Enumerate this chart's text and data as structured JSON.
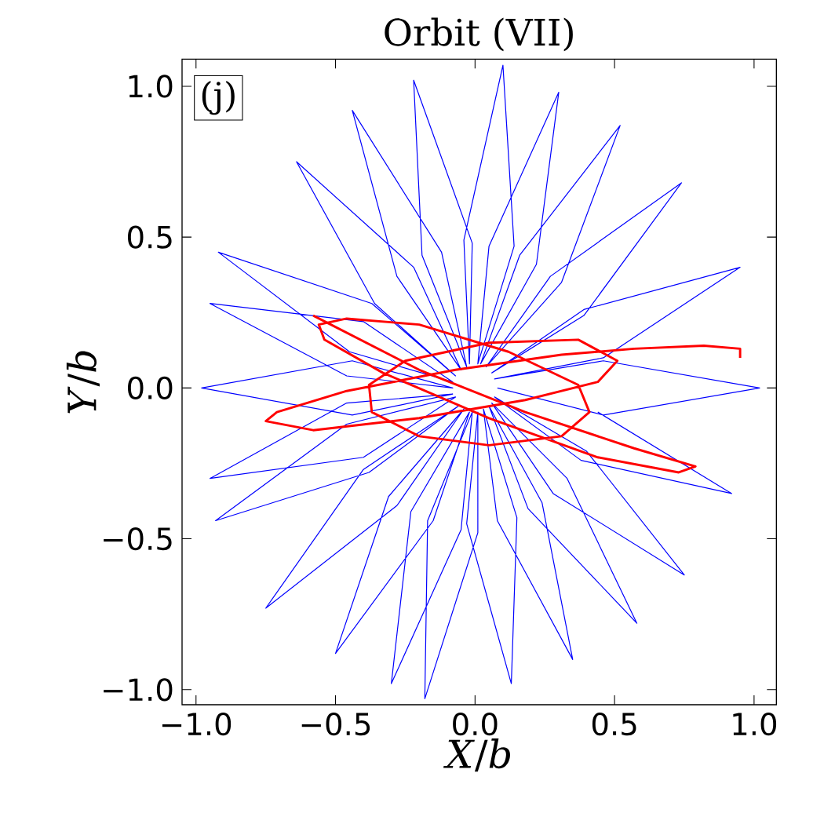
{
  "chart_data": {
    "type": "line",
    "title": "Orbit (VII)",
    "xlabel": "*X*/*b*",
    "ylabel": "*Y*/*b*",
    "annotations": [
      "(j)"
    ],
    "xlim": [
      -1.05,
      1.08
    ],
    "ylim": [
      -1.05,
      1.09
    ],
    "xticks": [
      {
        "value": -1.0,
        "label": "−1.0"
      },
      {
        "value": -0.5,
        "label": "−0.5"
      },
      {
        "value": 0.0,
        "label": "0.0"
      },
      {
        "value": 0.5,
        "label": "0.5"
      },
      {
        "value": 1.0,
        "label": "1.0"
      }
    ],
    "yticks": [
      {
        "value": -1.0,
        "label": "−1.0"
      },
      {
        "value": -0.5,
        "label": "−0.5"
      },
      {
        "value": 0.0,
        "label": "0.0"
      },
      {
        "value": 0.5,
        "label": "0.5"
      },
      {
        "value": 1.0,
        "label": "1.0"
      }
    ],
    "grid": false,
    "series": [
      {
        "color": "#0000ff",
        "x": [
          0.08,
          0.46,
          1.02,
          0.46,
          0.07,
          0.46,
          0.95,
          0.39,
          0.06,
          0.39,
          0.74,
          0.27,
          0.04,
          0.31,
          0.52,
          0.16,
          0.02,
          0.22,
          0.3,
          0.05,
          0.01,
          0.14,
          0.1,
          -0.04,
          -0.02,
          -0.01,
          -0.22,
          -0.19,
          -0.03,
          -0.12,
          -0.44,
          -0.28,
          -0.05,
          -0.22,
          -0.64,
          -0.36,
          -0.07,
          -0.37,
          -0.92,
          -0.45,
          -0.08,
          -0.4,
          -0.95,
          -0.46,
          -0.08,
          -0.44,
          -0.98,
          -0.44,
          -0.08,
          -0.46,
          -0.95,
          -0.4,
          -0.07,
          -0.46,
          -0.93,
          -0.38,
          -0.06,
          -0.4,
          -0.75,
          -0.28,
          -0.04,
          -0.31,
          -0.5,
          -0.15,
          -0.02,
          -0.23,
          -0.3,
          -0.05,
          -0.01,
          -0.17,
          -0.18,
          0.01,
          0.01,
          -0.03,
          0.13,
          0.15,
          0.03,
          0.08,
          0.35,
          0.24,
          0.05,
          0.19,
          0.58,
          0.33,
          0.06,
          0.28,
          0.75,
          0.4,
          0.07,
          0.38,
          0.92,
          0.44
        ],
        "values": [
          0.0,
          -0.09,
          0.0,
          0.09,
          0.03,
          0.1,
          0.4,
          0.26,
          0.05,
          0.24,
          0.68,
          0.37,
          0.07,
          0.35,
          0.87,
          0.44,
          0.08,
          0.41,
          0.98,
          0.47,
          0.08,
          0.47,
          1.07,
          0.49,
          0.08,
          0.48,
          1.02,
          0.44,
          0.07,
          0.45,
          0.92,
          0.37,
          0.06,
          0.4,
          0.75,
          0.28,
          0.04,
          0.28,
          0.45,
          0.12,
          0.02,
          0.22,
          0.28,
          0.04,
          0.0,
          0.09,
          0.0,
          -0.09,
          -0.02,
          -0.05,
          -0.3,
          -0.23,
          -0.03,
          -0.12,
          -0.44,
          -0.28,
          -0.06,
          -0.27,
          -0.73,
          -0.39,
          -0.07,
          -0.36,
          -0.88,
          -0.44,
          -0.08,
          -0.41,
          -0.98,
          -0.47,
          -0.08,
          -0.44,
          -1.03,
          -0.48,
          -0.08,
          -0.45,
          -0.98,
          -0.43,
          -0.07,
          -0.44,
          -0.9,
          -0.38,
          -0.06,
          -0.4,
          -0.78,
          -0.3,
          -0.05,
          -0.35,
          -0.62,
          -0.21,
          -0.03,
          -0.24,
          -0.35,
          -0.08
        ]
      },
      {
        "color": "#ff0000",
        "x": [
          -0.58,
          -0.2,
          0.18,
          0.57,
          0.79,
          0.73,
          0.44,
          0.05,
          -0.33,
          -0.54,
          -0.56,
          -0.46,
          -0.2,
          0.12,
          0.37,
          0.41,
          0.31,
          0.05,
          -0.2,
          -0.37,
          -0.38,
          -0.25,
          0.05,
          0.37,
          0.51,
          0.44,
          0.18,
          -0.2,
          -0.58,
          -0.75,
          -0.71,
          -0.46,
          -0.07,
          0.31,
          0.57,
          0.82,
          0.95,
          0.95
        ],
        "values": [
          0.24,
          0.06,
          -0.08,
          -0.2,
          -0.26,
          -0.28,
          -0.23,
          -0.1,
          0.05,
          0.16,
          0.21,
          0.23,
          0.21,
          0.12,
          0.01,
          -0.08,
          -0.16,
          -0.19,
          -0.16,
          -0.08,
          0.01,
          0.09,
          0.15,
          0.16,
          0.09,
          0.02,
          -0.04,
          -0.1,
          -0.14,
          -0.11,
          -0.08,
          -0.01,
          0.06,
          0.11,
          0.13,
          0.14,
          0.13,
          0.1
        ]
      }
    ]
  }
}
